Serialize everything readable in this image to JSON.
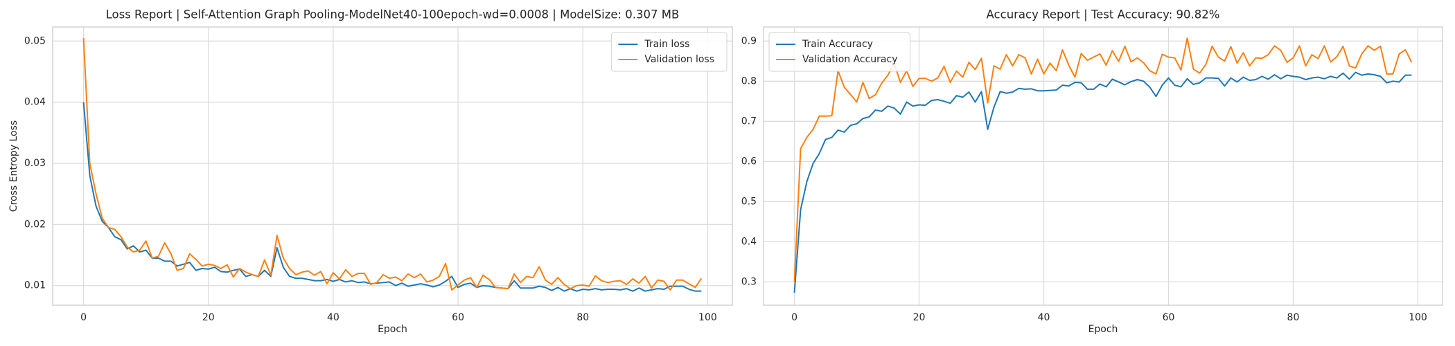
{
  "chart_data": [
    {
      "type": "line",
      "title": "Loss Report | Self-Attention Graph Pooling-ModelNet40-100epoch-wd=0.0008 | ModelSize: 0.307 MB",
      "x_label": "Epoch",
      "y_label": "Cross Entropy Loss",
      "grid": true,
      "legend": "upper right",
      "xlim": [
        -4.95,
        103.95
      ],
      "xticks": [
        0,
        20,
        40,
        60,
        80,
        100
      ],
      "ylim": [
        0.0068,
        0.0523
      ],
      "yticks": [
        0.01,
        0.02,
        0.03,
        0.04,
        0.05
      ],
      "x": [
        0,
        1,
        2,
        3,
        4,
        5,
        6,
        7,
        8,
        9,
        10,
        11,
        12,
        13,
        14,
        15,
        16,
        17,
        18,
        19,
        20,
        21,
        22,
        23,
        24,
        25,
        26,
        27,
        28,
        29,
        30,
        31,
        32,
        33,
        34,
        35,
        36,
        37,
        38,
        39,
        40,
        41,
        42,
        43,
        44,
        45,
        46,
        47,
        48,
        49,
        50,
        51,
        52,
        53,
        54,
        55,
        56,
        57,
        58,
        59,
        60,
        61,
        62,
        63,
        64,
        65,
        66,
        67,
        68,
        69,
        70,
        71,
        72,
        73,
        74,
        75,
        76,
        77,
        78,
        79,
        80,
        81,
        82,
        83,
        84,
        85,
        86,
        87,
        88,
        89,
        90,
        91,
        92,
        93,
        94,
        95,
        96,
        97,
        98,
        99
      ],
      "series": [
        {
          "name": "Train loss",
          "color": "#1f77b4",
          "values": [
            0.04,
            0.028,
            0.023,
            0.0205,
            0.0195,
            0.018,
            0.0175,
            0.016,
            0.0165,
            0.0155,
            0.0158,
            0.0145,
            0.0145,
            0.014,
            0.014,
            0.0132,
            0.0135,
            0.0138,
            0.0125,
            0.0128,
            0.0127,
            0.013,
            0.0123,
            0.0122,
            0.0125,
            0.0127,
            0.0115,
            0.0118,
            0.0115,
            0.0125,
            0.0115,
            0.0162,
            0.013,
            0.0115,
            0.0112,
            0.0112,
            0.011,
            0.0108,
            0.0108,
            0.011,
            0.0107,
            0.011,
            0.0106,
            0.0108,
            0.0105,
            0.0106,
            0.0103,
            0.0104,
            0.0105,
            0.0106,
            0.01,
            0.0104,
            0.0099,
            0.0101,
            0.0103,
            0.0101,
            0.0098,
            0.0101,
            0.0107,
            0.0115,
            0.0097,
            0.0102,
            0.0104,
            0.0097,
            0.01,
            0.0099,
            0.0097,
            0.0096,
            0.0095,
            0.0108,
            0.0096,
            0.0096,
            0.0096,
            0.0099,
            0.0097,
            0.0092,
            0.0097,
            0.0091,
            0.0095,
            0.0091,
            0.0094,
            0.0093,
            0.0095,
            0.0093,
            0.0094,
            0.0094,
            0.0093,
            0.0095,
            0.0091,
            0.0096,
            0.0091,
            0.0093,
            0.0095,
            0.0094,
            0.0099,
            0.0099,
            0.0099,
            0.0094,
            0.0091,
            0.0091
          ]
        },
        {
          "name": "Validation loss",
          "color": "#ff7f0e",
          "values": [
            0.0505,
            0.03,
            0.025,
            0.021,
            0.0195,
            0.0192,
            0.018,
            0.0163,
            0.0155,
            0.0158,
            0.0173,
            0.0145,
            0.0148,
            0.017,
            0.0152,
            0.0125,
            0.0128,
            0.0152,
            0.0143,
            0.0132,
            0.0135,
            0.0133,
            0.0128,
            0.0134,
            0.0114,
            0.0128,
            0.0122,
            0.0118,
            0.0115,
            0.0142,
            0.0117,
            0.0182,
            0.0145,
            0.0128,
            0.0118,
            0.0122,
            0.0124,
            0.0117,
            0.0123,
            0.0103,
            0.0121,
            0.0111,
            0.0126,
            0.0115,
            0.012,
            0.012,
            0.0102,
            0.0105,
            0.0118,
            0.0112,
            0.0114,
            0.0108,
            0.0119,
            0.0113,
            0.0119,
            0.0106,
            0.0109,
            0.0115,
            0.0136,
            0.0093,
            0.0101,
            0.0109,
            0.0113,
            0.0097,
            0.0117,
            0.011,
            0.0097,
            0.0096,
            0.0095,
            0.0119,
            0.0105,
            0.0115,
            0.0113,
            0.0131,
            0.0109,
            0.0102,
            0.0113,
            0.0102,
            0.0095,
            0.01,
            0.0101,
            0.0099,
            0.0116,
            0.0108,
            0.0105,
            0.0107,
            0.0108,
            0.0102,
            0.0111,
            0.0104,
            0.0115,
            0.0096,
            0.0109,
            0.0107,
            0.0093,
            0.0109,
            0.0109,
            0.0103,
            0.0097,
            0.0112
          ]
        }
      ]
    },
    {
      "type": "line",
      "title": "Accuracy Report | Test Accuracy: 90.82%",
      "x_label": "Epoch",
      "grid": true,
      "legend": "upper left",
      "xlim": [
        -4.95,
        103.95
      ],
      "xticks": [
        0,
        20,
        40,
        60,
        80,
        100
      ],
      "ylim": [
        0.242,
        0.935
      ],
      "yticks": [
        0.3,
        0.4,
        0.5,
        0.6,
        0.7,
        0.8,
        0.9
      ],
      "x": [
        0,
        1,
        2,
        3,
        4,
        5,
        6,
        7,
        8,
        9,
        10,
        11,
        12,
        13,
        14,
        15,
        16,
        17,
        18,
        19,
        20,
        21,
        22,
        23,
        24,
        25,
        26,
        27,
        28,
        29,
        30,
        31,
        32,
        33,
        34,
        35,
        36,
        37,
        38,
        39,
        40,
        41,
        42,
        43,
        44,
        45,
        46,
        47,
        48,
        49,
        50,
        51,
        52,
        53,
        54,
        55,
        56,
        57,
        58,
        59,
        60,
        61,
        62,
        63,
        64,
        65,
        66,
        67,
        68,
        69,
        70,
        71,
        72,
        73,
        74,
        75,
        76,
        77,
        78,
        79,
        80,
        81,
        82,
        83,
        84,
        85,
        86,
        87,
        88,
        89,
        90,
        91,
        92,
        93,
        94,
        95,
        96,
        97,
        98,
        99
      ],
      "series": [
        {
          "name": "Train Accuracy",
          "color": "#1f77b4",
          "values": [
            0.273,
            0.48,
            0.55,
            0.595,
            0.62,
            0.655,
            0.66,
            0.678,
            0.673,
            0.69,
            0.694,
            0.707,
            0.711,
            0.728,
            0.725,
            0.738,
            0.733,
            0.718,
            0.748,
            0.738,
            0.741,
            0.74,
            0.752,
            0.754,
            0.75,
            0.745,
            0.764,
            0.76,
            0.773,
            0.748,
            0.774,
            0.68,
            0.735,
            0.774,
            0.77,
            0.773,
            0.782,
            0.78,
            0.781,
            0.776,
            0.776,
            0.777,
            0.778,
            0.79,
            0.788,
            0.797,
            0.796,
            0.78,
            0.78,
            0.793,
            0.786,
            0.805,
            0.798,
            0.791,
            0.799,
            0.804,
            0.8,
            0.785,
            0.762,
            0.79,
            0.808,
            0.79,
            0.786,
            0.806,
            0.792,
            0.796,
            0.808,
            0.808,
            0.807,
            0.788,
            0.808,
            0.798,
            0.81,
            0.802,
            0.804,
            0.812,
            0.805,
            0.816,
            0.806,
            0.815,
            0.812,
            0.81,
            0.804,
            0.808,
            0.81,
            0.806,
            0.812,
            0.808,
            0.82,
            0.805,
            0.822,
            0.815,
            0.818,
            0.816,
            0.812,
            0.796,
            0.8,
            0.798,
            0.815,
            0.815
          ]
        },
        {
          "name": "Validation Accuracy",
          "color": "#ff7f0e",
          "values": [
            0.3,
            0.632,
            0.66,
            0.68,
            0.713,
            0.713,
            0.714,
            0.826,
            0.785,
            0.767,
            0.748,
            0.797,
            0.757,
            0.766,
            0.795,
            0.815,
            0.845,
            0.797,
            0.826,
            0.787,
            0.807,
            0.807,
            0.8,
            0.808,
            0.837,
            0.797,
            0.825,
            0.81,
            0.847,
            0.829,
            0.857,
            0.746,
            0.838,
            0.83,
            0.866,
            0.838,
            0.866,
            0.858,
            0.818,
            0.855,
            0.818,
            0.845,
            0.826,
            0.878,
            0.84,
            0.81,
            0.869,
            0.852,
            0.86,
            0.868,
            0.84,
            0.876,
            0.849,
            0.887,
            0.848,
            0.858,
            0.846,
            0.826,
            0.818,
            0.867,
            0.86,
            0.858,
            0.828,
            0.907,
            0.83,
            0.82,
            0.842,
            0.887,
            0.86,
            0.85,
            0.886,
            0.845,
            0.871,
            0.838,
            0.858,
            0.857,
            0.866,
            0.888,
            0.877,
            0.847,
            0.858,
            0.888,
            0.838,
            0.866,
            0.856,
            0.888,
            0.848,
            0.861,
            0.887,
            0.838,
            0.833,
            0.868,
            0.888,
            0.877,
            0.887,
            0.818,
            0.818,
            0.868,
            0.878,
            0.847
          ]
        }
      ]
    }
  ]
}
